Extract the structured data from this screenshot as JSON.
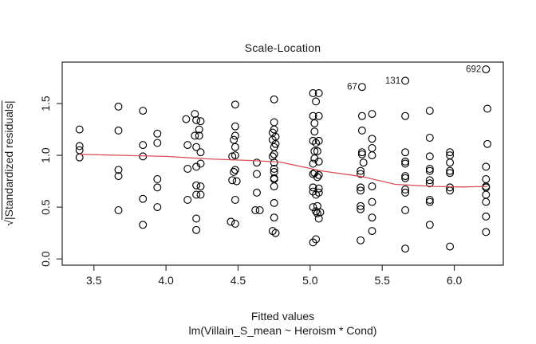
{
  "figure": {
    "title": "Scale-Location",
    "xlabel": "Fitted values",
    "xlabel_sub": "lm(Villain_S_mean ~ Heroism * Cond)",
    "ylabel_sqrt": "√",
    "ylabel_rest": "|Standardized residuals|"
  },
  "chart_data": {
    "type": "scatter",
    "title": "Scale-Location",
    "xlabel": "Fitted values",
    "xlabel_model": "lm(Villain_S_mean ~ Heroism * Cond)",
    "ylabel": "sqrt(|Standardized residuals|)",
    "xlim": [
      3.28,
      6.34
    ],
    "ylim": [
      -0.06,
      1.9
    ],
    "x_ticks": [
      3.5,
      4.0,
      4.5,
      5.0,
      5.5,
      6.0
    ],
    "x_tick_labels": [
      "3.5",
      "4.0",
      "4.5",
      "5.0",
      "5.5",
      "6.0"
    ],
    "y_ticks": [
      0.0,
      0.5,
      1.0,
      1.5
    ],
    "y_tick_labels": [
      "0.0",
      "0.5",
      "1.0",
      "1.5"
    ],
    "grid": false,
    "legend": null,
    "point_color": "#000000",
    "smoother_color": "#d94f5c",
    "labeled_points": [
      {
        "label": "67",
        "x": 5.36,
        "y": 1.66
      },
      {
        "label": "131",
        "x": 5.66,
        "y": 1.72
      },
      {
        "label": "692",
        "x": 6.22,
        "y": 1.83
      }
    ],
    "points": [
      [
        3.4,
        1.25
      ],
      [
        3.4,
        1.09
      ],
      [
        3.4,
        1.05
      ],
      [
        3.4,
        0.98
      ],
      [
        3.67,
        1.47
      ],
      [
        3.67,
        1.24
      ],
      [
        3.67,
        0.86
      ],
      [
        3.67,
        0.8
      ],
      [
        3.67,
        0.47
      ],
      [
        3.84,
        1.43
      ],
      [
        3.84,
        1.1
      ],
      [
        3.84,
        0.99
      ],
      [
        3.84,
        0.58
      ],
      [
        3.84,
        0.33
      ],
      [
        3.94,
        1.21
      ],
      [
        3.94,
        1.12
      ],
      [
        3.94,
        0.77
      ],
      [
        3.94,
        0.69
      ],
      [
        3.94,
        0.5
      ],
      [
        4.14,
        1.35
      ],
      [
        4.2,
        1.4
      ],
      [
        4.21,
        1.34
      ],
      [
        4.24,
        1.33
      ],
      [
        4.23,
        1.25
      ],
      [
        4.2,
        1.19
      ],
      [
        4.23,
        1.19
      ],
      [
        4.15,
        1.1
      ],
      [
        4.21,
        1.08
      ],
      [
        4.24,
        1.03
      ],
      [
        4.24,
        0.92
      ],
      [
        4.21,
        0.89
      ],
      [
        4.15,
        0.87
      ],
      [
        4.21,
        0.71
      ],
      [
        4.24,
        0.7
      ],
      [
        4.21,
        0.62
      ],
      [
        4.24,
        0.62
      ],
      [
        4.15,
        0.57
      ],
      [
        4.21,
        0.39
      ],
      [
        4.21,
        0.28
      ],
      [
        4.48,
        1.49
      ],
      [
        4.48,
        1.28
      ],
      [
        4.48,
        1.19
      ],
      [
        4.47,
        1.15
      ],
      [
        4.48,
        1.08
      ],
      [
        4.48,
        1.0
      ],
      [
        4.46,
        0.99
      ],
      [
        4.48,
        0.86
      ],
      [
        4.47,
        0.84
      ],
      [
        4.46,
        0.76
      ],
      [
        4.49,
        0.75
      ],
      [
        4.48,
        0.57
      ],
      [
        4.45,
        0.36
      ],
      [
        4.48,
        0.34
      ],
      [
        4.63,
        0.93
      ],
      [
        4.63,
        0.82
      ],
      [
        4.63,
        0.64
      ],
      [
        4.62,
        0.47
      ],
      [
        4.65,
        0.47
      ],
      [
        4.75,
        1.54
      ],
      [
        4.75,
        1.32
      ],
      [
        4.75,
        1.25
      ],
      [
        4.74,
        1.22
      ],
      [
        4.76,
        1.18
      ],
      [
        4.74,
        1.15
      ],
      [
        4.76,
        1.11
      ],
      [
        4.75,
        1.08
      ],
      [
        4.75,
        1.01
      ],
      [
        4.74,
        0.99
      ],
      [
        4.75,
        0.93
      ],
      [
        4.75,
        0.87
      ],
      [
        4.75,
        0.84
      ],
      [
        4.75,
        0.78
      ],
      [
        4.75,
        0.77
      ],
      [
        4.75,
        0.7
      ],
      [
        4.75,
        0.54
      ],
      [
        4.75,
        0.4
      ],
      [
        4.74,
        0.27
      ],
      [
        4.76,
        0.25
      ],
      [
        5.02,
        1.6
      ],
      [
        5.06,
        1.6
      ],
      [
        5.04,
        1.52
      ],
      [
        5.02,
        1.38
      ],
      [
        5.06,
        1.38
      ],
      [
        5.03,
        1.31
      ],
      [
        5.03,
        1.23
      ],
      [
        5.02,
        1.14
      ],
      [
        5.06,
        1.14
      ],
      [
        5.04,
        1.12
      ],
      [
        5.03,
        1.04
      ],
      [
        5.05,
        1.04
      ],
      [
        5.03,
        0.97
      ],
      [
        5.06,
        0.94
      ],
      [
        5.02,
        0.92
      ],
      [
        5.03,
        0.83
      ],
      [
        5.02,
        0.82
      ],
      [
        5.06,
        0.81
      ],
      [
        5.05,
        0.79
      ],
      [
        5.02,
        0.69
      ],
      [
        5.06,
        0.68
      ],
      [
        5.02,
        0.65
      ],
      [
        5.06,
        0.64
      ],
      [
        5.04,
        0.62
      ],
      [
        5.02,
        0.5
      ],
      [
        5.05,
        0.51
      ],
      [
        5.04,
        0.46
      ],
      [
        5.07,
        0.45
      ],
      [
        5.05,
        0.44
      ],
      [
        5.06,
        0.39
      ],
      [
        5.04,
        0.19
      ],
      [
        5.02,
        0.16
      ],
      [
        5.36,
        1.38
      ],
      [
        5.43,
        1.4
      ],
      [
        5.36,
        1.24
      ],
      [
        5.43,
        1.16
      ],
      [
        5.43,
        1.07
      ],
      [
        5.36,
        1.03
      ],
      [
        5.36,
        1.01
      ],
      [
        5.43,
        1.0
      ],
      [
        5.37,
        0.93
      ],
      [
        5.35,
        0.85
      ],
      [
        5.35,
        0.82
      ],
      [
        5.43,
        0.7
      ],
      [
        5.35,
        0.69
      ],
      [
        5.35,
        0.66
      ],
      [
        5.43,
        0.55
      ],
      [
        5.35,
        0.51
      ],
      [
        5.35,
        0.48
      ],
      [
        5.43,
        0.4
      ],
      [
        5.43,
        0.27
      ],
      [
        5.35,
        0.18
      ],
      [
        5.66,
        1.38
      ],
      [
        5.66,
        1.03
      ],
      [
        5.66,
        0.94
      ],
      [
        5.66,
        0.92
      ],
      [
        5.66,
        0.8
      ],
      [
        5.66,
        0.78
      ],
      [
        5.66,
        0.67
      ],
      [
        5.66,
        0.64
      ],
      [
        5.66,
        0.47
      ],
      [
        5.66,
        0.1
      ],
      [
        5.83,
        1.43
      ],
      [
        5.83,
        1.17
      ],
      [
        5.83,
        0.99
      ],
      [
        5.83,
        0.87
      ],
      [
        5.83,
        0.85
      ],
      [
        5.83,
        0.76
      ],
      [
        5.83,
        0.73
      ],
      [
        5.83,
        0.57
      ],
      [
        5.83,
        0.55
      ],
      [
        5.83,
        0.33
      ],
      [
        5.97,
        1.03
      ],
      [
        5.97,
        1.0
      ],
      [
        5.97,
        0.93
      ],
      [
        5.97,
        0.85
      ],
      [
        5.97,
        0.83
      ],
      [
        5.97,
        0.69
      ],
      [
        5.97,
        0.66
      ],
      [
        5.97,
        0.12
      ],
      [
        6.23,
        1.45
      ],
      [
        6.23,
        1.11
      ],
      [
        6.22,
        0.89
      ],
      [
        6.22,
        0.77
      ],
      [
        6.22,
        0.7
      ],
      [
        6.22,
        0.69
      ],
      [
        6.22,
        0.62
      ],
      [
        6.22,
        0.55
      ],
      [
        6.22,
        0.41
      ],
      [
        6.22,
        0.26
      ]
    ],
    "smooth_line": [
      [
        3.4,
        1.01
      ],
      [
        3.7,
        1.0
      ],
      [
        4.0,
        0.99
      ],
      [
        4.3,
        0.965
      ],
      [
        4.6,
        0.95
      ],
      [
        4.79,
        0.935
      ],
      [
        5.08,
        0.85
      ],
      [
        5.36,
        0.795
      ],
      [
        5.59,
        0.72
      ],
      [
        5.86,
        0.7
      ],
      [
        6.05,
        0.695
      ],
      [
        6.23,
        0.7
      ]
    ]
  }
}
